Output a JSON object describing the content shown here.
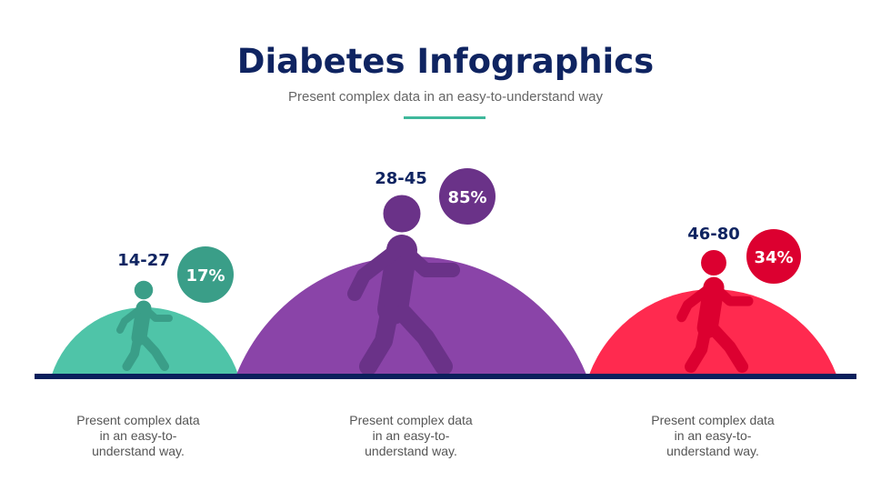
{
  "header": {
    "title": "Diabetes Infographics",
    "subtitle": "Present complex data in an easy-to-understand way",
    "accent_color": "#3fb89b"
  },
  "groups": [
    {
      "range": "14-27",
      "percent": "17%",
      "value": 17,
      "caption": [
        "Present complex data",
        "in an easy-to-",
        "understand way."
      ],
      "dome_color": "#4fc4a8",
      "figure_color": "#3a9e88"
    },
    {
      "range": "28-45",
      "percent": "85%",
      "value": 85,
      "caption": [
        "Present complex data",
        "in an easy-to-",
        "understand way."
      ],
      "dome_color": "#8a44a8",
      "figure_color": "#6a3288"
    },
    {
      "range": "46-80",
      "percent": "34%",
      "value": 34,
      "caption": [
        "Present complex data",
        "in an easy-to-",
        "understand way."
      ],
      "dome_color": "#ff2a4f",
      "figure_color": "#dc0030"
    }
  ],
  "baseline_color": "#0a1f5c"
}
